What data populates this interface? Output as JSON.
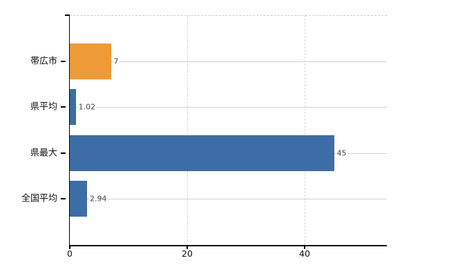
{
  "chart_data": {
    "type": "bar",
    "orientation": "horizontal",
    "title": "",
    "categories": [
      "帯広市",
      "県平均",
      "県最大",
      "全国平均"
    ],
    "values": [
      7,
      1.02,
      45,
      2.94
    ],
    "value_labels": [
      "7",
      "1.02",
      "45",
      "2.94"
    ],
    "bar_colors": [
      "#ee9a39",
      "#3c6da7",
      "#3c6da7",
      "#3c6da7"
    ],
    "x_ticks": [
      0,
      20,
      40
    ],
    "x_tick_labels": [
      "0",
      "20",
      "40"
    ],
    "xlim": [
      0,
      54
    ],
    "grid": "on",
    "legend_position": "none"
  },
  "style": {
    "background": "#ffffff",
    "bar_blue": "#3c6da7",
    "bar_orange": "#ee9a39",
    "axis_color": "#000000",
    "grid_horizontal_color": "#ccd5cc",
    "grid_vertical_color": "#d9d9d9",
    "top_border_color": "#cccccc",
    "category_label_color": "#111111",
    "value_label_color": "#444444"
  }
}
